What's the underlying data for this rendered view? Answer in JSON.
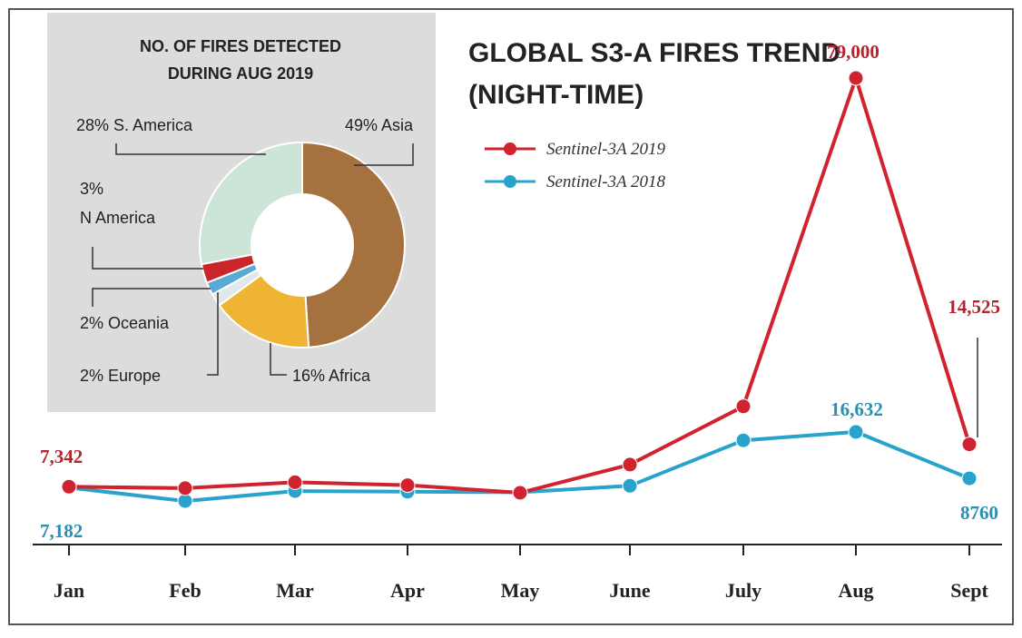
{
  "chart_data": [
    {
      "type": "line",
      "title": "GLOBAL S3-A FIRES TREND",
      "subtitle": "(NIGHT-TIME)",
      "categories": [
        "Jan",
        "Feb",
        "Mar",
        "Apr",
        "May",
        "June",
        "July",
        "Aug",
        "Sept"
      ],
      "series": [
        {
          "name": "Sentinel-3A 2019",
          "color": "#d0232f",
          "values": [
            7342,
            7100,
            8100,
            7600,
            6300,
            11100,
            21000,
            79000,
            14525
          ]
        },
        {
          "name": "Sentinel-3A 2018",
          "color": "#29a3cc",
          "values": [
            7182,
            4900,
            6600,
            6500,
            6400,
            7500,
            15200,
            16632,
            8760
          ]
        }
      ],
      "ylim": [
        0,
        84000
      ],
      "grid": false,
      "legend_position": "top-right",
      "annotations": [
        {
          "series": 0,
          "index": 0,
          "text": "7,342"
        },
        {
          "series": 1,
          "index": 0,
          "text": "7,182"
        },
        {
          "series": 0,
          "index": 7,
          "text": "79,000"
        },
        {
          "series": 1,
          "index": 7,
          "text": "16,632"
        },
        {
          "series": 0,
          "index": 8,
          "text": "14,525"
        },
        {
          "series": 1,
          "index": 8,
          "text": "8760"
        }
      ]
    },
    {
      "type": "pie",
      "donut": true,
      "title_lines": [
        "NO. OF FIRES DETECTED",
        "DURING AUG 2019"
      ],
      "slices": [
        {
          "name": "Asia",
          "label": "49% Asia",
          "value": 49,
          "color": "#a5713f"
        },
        {
          "name": "Africa",
          "label": "16% Africa",
          "value": 16,
          "color": "#f0b434"
        },
        {
          "name": "Europe",
          "label": "2% Europe",
          "value": 2,
          "color": "#dfe8ea"
        },
        {
          "name": "Oceania",
          "label": "2% Oceania",
          "value": 2,
          "color": "#5aaad6"
        },
        {
          "name": "N America",
          "label_lines": [
            "3%",
            "N America"
          ],
          "value": 3,
          "color": "#c9252b"
        },
        {
          "name": "S. America",
          "label": "28% S. America",
          "value": 28,
          "color": "#cde5d8"
        }
      ]
    }
  ]
}
